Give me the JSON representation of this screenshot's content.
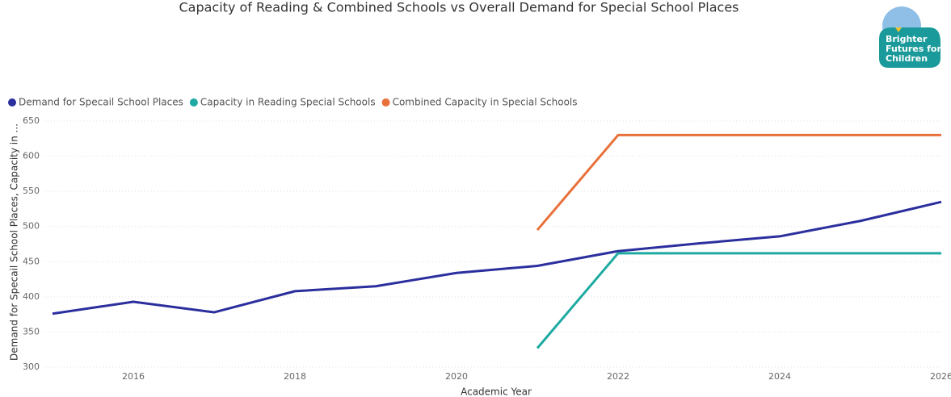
{
  "chart_data": {
    "type": "line",
    "title": "Capacity of Reading & Combined Schools vs Overall Demand for Special School Places",
    "logo": {
      "lines": [
        "Brighter",
        "Futures for",
        "Children"
      ]
    },
    "x_label": "Academic Year",
    "y_label": "Demand for Specail School Places, Capacity in ...",
    "x": [
      2015,
      2016,
      2017,
      2018,
      2019,
      2020,
      2021,
      2022,
      2023,
      2024,
      2025,
      2026
    ],
    "series": [
      {
        "name": "Demand for Specail School Places",
        "color": "#2b2f9e",
        "values": [
          376,
          393,
          378,
          408,
          415,
          434,
          444,
          465,
          476,
          486,
          508,
          535
        ]
      },
      {
        "name": "Capacity in Reading Special Schools",
        "color": "#1eaaa2",
        "values": [
          null,
          null,
          null,
          null,
          null,
          null,
          327,
          462,
          462,
          462,
          462,
          462
        ]
      },
      {
        "name": "Combined Capacity in Special Schools",
        "color": "#e8703a",
        "values": [
          null,
          null,
          null,
          null,
          null,
          null,
          495,
          630,
          630,
          630,
          630,
          630
        ]
      }
    ],
    "xlim": [
      2015,
      2026
    ],
    "xticks": [
      2016,
      2018,
      2020,
      2022,
      2024,
      2026
    ],
    "ylim": [
      300,
      650
    ],
    "yticks": [
      300,
      350,
      400,
      450,
      500,
      550,
      600,
      650
    ],
    "grid": true,
    "legend": "top-left"
  }
}
